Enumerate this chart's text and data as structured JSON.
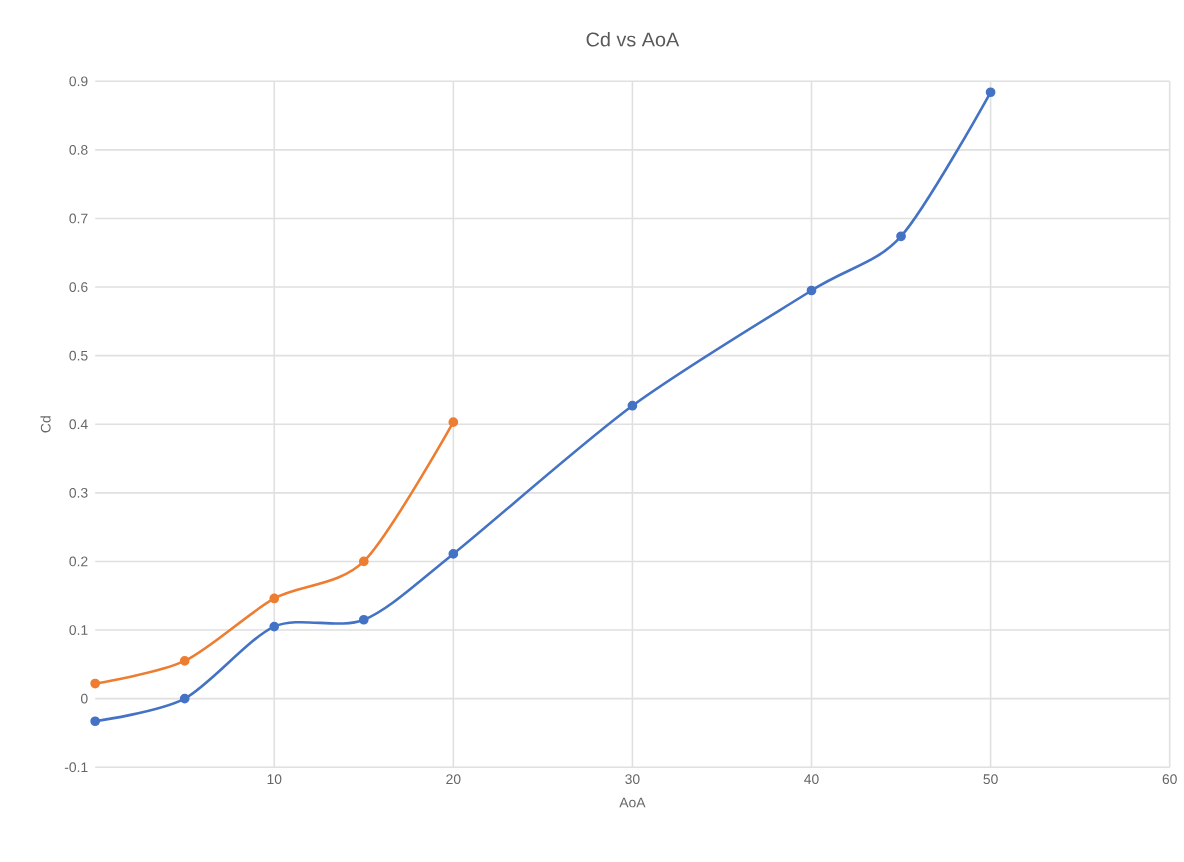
{
  "chart_data": {
    "type": "line",
    "title": "Cd vs AoA",
    "xlabel": "AoA",
    "ylabel": "Cd",
    "xlim": [
      0,
      60
    ],
    "xticks": [
      10,
      20,
      30,
      40,
      50,
      60
    ],
    "ylim": [
      -0.1,
      0.9
    ],
    "yticks": [
      -0.1,
      0,
      0.1,
      0.2,
      0.3,
      0.4,
      0.5,
      0.6,
      0.7,
      0.8,
      0.9
    ],
    "grid": true,
    "marker": "circle",
    "series": [
      {
        "color": "#4472c4",
        "x": [
          0,
          5,
          10,
          15,
          20,
          30,
          40,
          45,
          50
        ],
        "values": [
          -0.033,
          0.0,
          0.105,
          0.115,
          0.211,
          0.427,
          0.595,
          0.674,
          0.884
        ]
      },
      {
        "color": "#ed7d31",
        "x": [
          0,
          5,
          10,
          15,
          20
        ],
        "values": [
          0.022,
          0.055,
          0.146,
          0.2,
          0.403
        ]
      }
    ]
  }
}
